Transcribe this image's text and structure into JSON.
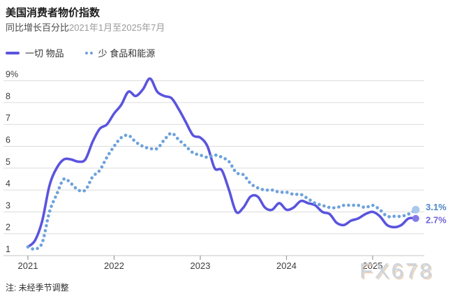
{
  "header": {
    "title": "美国消费者物价指数",
    "subtitle_label": "同比增长百分比",
    "subtitle_range": "2021年1月至2025年7月"
  },
  "legend": [
    {
      "label": "一切 物品",
      "color": "#5a54de",
      "style": "solid"
    },
    {
      "label": "少 食品和能源",
      "color": "#6da2dc",
      "style": "dotted"
    }
  ],
  "footnote": "注: 未经季节调整",
  "watermark": "FX678",
  "chart_data": {
    "type": "line",
    "title": "美国消费者物价指数",
    "subtitle": "同比增长百分比 2021年1月至2025年7月",
    "x_unit": "month",
    "x_start": "2021-01",
    "x_end": "2025-07",
    "x_tick_labels": [
      "2021",
      "2022",
      "2023",
      "2024",
      "2025"
    ],
    "y_tick_labels": [
      "9%",
      "8",
      "7",
      "6",
      "5",
      "4",
      "3",
      "2",
      "1"
    ],
    "y_tick_values": [
      9,
      8,
      7,
      6,
      5,
      4,
      3,
      2,
      1
    ],
    "ylim": [
      1,
      9
    ],
    "grid": true,
    "legend_position": "top-left",
    "series": [
      {
        "name": "一切 物品",
        "style": "solid",
        "color": "#5a54de",
        "end_dot_color": "#837ae8",
        "end_label": "2.7%",
        "end_label_color": "#7066d9",
        "values": [
          1.4,
          1.7,
          2.6,
          4.2,
          5.0,
          5.4,
          5.4,
          5.3,
          5.4,
          6.2,
          6.8,
          7.0,
          7.5,
          7.9,
          8.5,
          8.3,
          8.6,
          9.1,
          8.5,
          8.3,
          8.2,
          7.7,
          7.1,
          6.5,
          6.4,
          6.0,
          5.0,
          4.9,
          4.0,
          3.0,
          3.2,
          3.7,
          3.7,
          3.2,
          3.1,
          3.4,
          3.1,
          3.2,
          3.5,
          3.4,
          3.3,
          3.0,
          2.9,
          2.5,
          2.4,
          2.6,
          2.7,
          2.9,
          3.0,
          2.8,
          2.4,
          2.3,
          2.4,
          2.7,
          2.7
        ]
      },
      {
        "name": "少 食品和能源",
        "style": "dotted",
        "color": "#6da2dc",
        "end_dot_color": "#a9c8ec",
        "end_label": "3.1%",
        "end_label_color": "#4d86c5",
        "values": [
          1.4,
          1.3,
          1.6,
          3.0,
          3.8,
          4.5,
          4.3,
          4.0,
          4.0,
          4.6,
          4.9,
          5.5,
          6.0,
          6.4,
          6.5,
          6.2,
          6.0,
          5.9,
          5.9,
          6.3,
          6.6,
          6.3,
          6.0,
          5.7,
          5.6,
          5.5,
          5.6,
          5.5,
          5.3,
          4.8,
          4.7,
          4.3,
          4.1,
          4.0,
          4.0,
          3.9,
          3.9,
          3.8,
          3.8,
          3.6,
          3.4,
          3.3,
          3.2,
          3.2,
          3.3,
          3.3,
          3.3,
          3.2,
          3.3,
          3.1,
          2.8,
          2.8,
          2.8,
          2.9,
          3.1
        ]
      }
    ]
  }
}
